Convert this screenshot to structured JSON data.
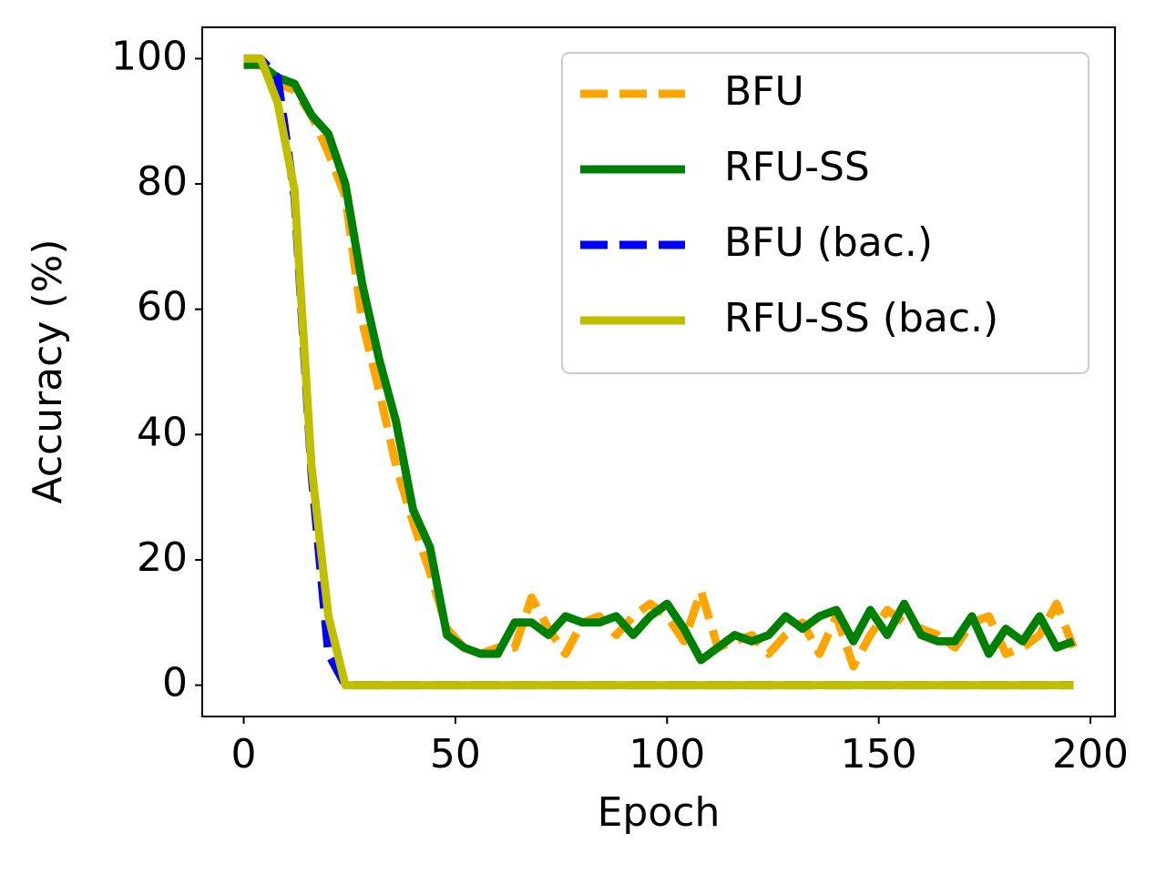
{
  "chart_data": {
    "type": "line",
    "x_label": "Epoch",
    "y_label": "Accuracy (%)",
    "x": [
      0,
      4,
      8,
      12,
      16,
      20,
      24,
      28,
      32,
      36,
      40,
      44,
      48,
      52,
      56,
      60,
      64,
      68,
      72,
      76,
      80,
      84,
      88,
      92,
      96,
      100,
      104,
      108,
      112,
      116,
      120,
      124,
      128,
      132,
      136,
      140,
      144,
      148,
      152,
      156,
      160,
      164,
      168,
      172,
      176,
      180,
      184,
      188,
      192,
      196
    ],
    "series": [
      {
        "name": "BFU",
        "color": "#ffa500",
        "linestyle": "dashed",
        "values": [
          100,
          100,
          96,
          95,
          91,
          85,
          78,
          58,
          47,
          35,
          26,
          18,
          9,
          6,
          5,
          6,
          6,
          14,
          9,
          5,
          10,
          11,
          8,
          11,
          13,
          11,
          7,
          15,
          6,
          7,
          8,
          5,
          8,
          10,
          5,
          11,
          3,
          8,
          12,
          10,
          9,
          8,
          6,
          10,
          11,
          5,
          6,
          8,
          13,
          6
        ]
      },
      {
        "name": "RFU-SS",
        "color": "#008000",
        "linestyle": "solid",
        "values": [
          99,
          99,
          97,
          96,
          91,
          88,
          80,
          64,
          52,
          42,
          28,
          22,
          8,
          6,
          5,
          5,
          10,
          10,
          8,
          11,
          10,
          10,
          11,
          8,
          11,
          13,
          9,
          4,
          6,
          8,
          7,
          8,
          11,
          9,
          11,
          12,
          7,
          12,
          8,
          13,
          8,
          7,
          7,
          11,
          5,
          9,
          7,
          11,
          6,
          7
        ]
      },
      {
        "name": "BFU (bac.)",
        "color": "#0000ff",
        "linestyle": "dashed",
        "values": [
          100,
          100,
          97,
          78,
          34,
          5,
          0,
          0,
          0,
          0,
          0,
          0,
          0,
          0,
          0,
          0,
          0,
          0,
          0,
          0,
          0,
          0,
          0,
          0,
          0,
          0,
          0,
          0,
          0,
          0,
          0,
          0,
          0,
          0,
          0,
          0,
          0,
          0,
          0,
          0,
          0,
          0,
          0,
          0,
          0,
          0,
          0,
          0,
          0,
          0
        ]
      },
      {
        "name": "RFU-SS (bac.)",
        "color": "#bfbf00",
        "linestyle": "solid",
        "values": [
          100,
          100,
          93,
          79,
          35,
          11,
          0,
          0,
          0,
          0,
          0,
          0,
          0,
          0,
          0,
          0,
          0,
          0,
          0,
          0,
          0,
          0,
          0,
          0,
          0,
          0,
          0,
          0,
          0,
          0,
          0,
          0,
          0,
          0,
          0,
          0,
          0,
          0,
          0,
          0,
          0,
          0,
          0,
          0,
          0,
          0,
          0,
          0,
          0,
          0
        ]
      }
    ],
    "xlim": [
      -9.8,
      205.8
    ],
    "ylim": [
      -5,
      105
    ],
    "xticks": [
      0,
      50,
      100,
      150,
      200
    ],
    "yticks": [
      0,
      20,
      40,
      60,
      80,
      100
    ],
    "grid": false,
    "legend": "upper right"
  }
}
